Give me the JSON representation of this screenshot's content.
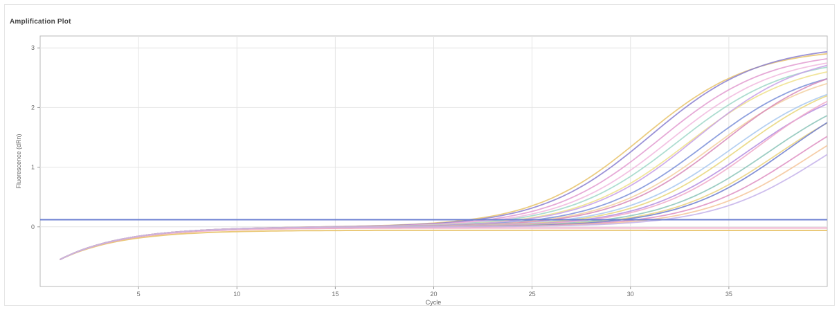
{
  "chart_data": {
    "type": "line",
    "title": "Amplification Plot",
    "xlabel": "Cycle",
    "ylabel": "Fluorescence (dRn)",
    "xlim": [
      0,
      40
    ],
    "ylim": [
      -1.0,
      3.2
    ],
    "x_ticks": [
      5,
      10,
      15,
      20,
      25,
      30,
      35
    ],
    "y_ticks": [
      0,
      1,
      2,
      3
    ],
    "grid": true,
    "legend": "none",
    "threshold": 0.12,
    "threshold_color": "#6b7fd1",
    "series_colors": [
      "#e8c36a",
      "#8a7fd0",
      "#e29bd0",
      "#f1b9de",
      "#9fd7c8",
      "#efe08a",
      "#c7a0e8",
      "#7a8fd8",
      "#f3d0a0",
      "#d78ab8",
      "#a8c8f0",
      "#e7d67a",
      "#b58ee0",
      "#f0a9c9",
      "#8bc4b9",
      "#ead27e",
      "#6f7ecf",
      "#de8fc2",
      "#f4c59a",
      "#c4b2ea"
    ],
    "series_ct": [
      24.6,
      25.0,
      25.5,
      26.0,
      26.4,
      26.9,
      27.3,
      27.8,
      28.2,
      28.7,
      29.1,
      29.6,
      30.0,
      30.5,
      31.0,
      31.5,
      32.0,
      32.5,
      33.1,
      33.7
    ],
    "series_plateau": [
      3.0,
      3.05,
      2.95,
      2.9,
      2.85,
      2.8,
      2.95,
      2.75,
      2.7,
      2.85,
      2.6,
      2.65,
      2.55,
      2.7,
      2.5,
      2.45,
      2.6,
      2.4,
      2.35,
      2.3
    ],
    "flat_series": [
      {
        "color": "#e8c36a",
        "value": -0.06
      },
      {
        "color": "#f0a9c9",
        "value": -0.02
      }
    ],
    "early_dip": -0.55
  }
}
